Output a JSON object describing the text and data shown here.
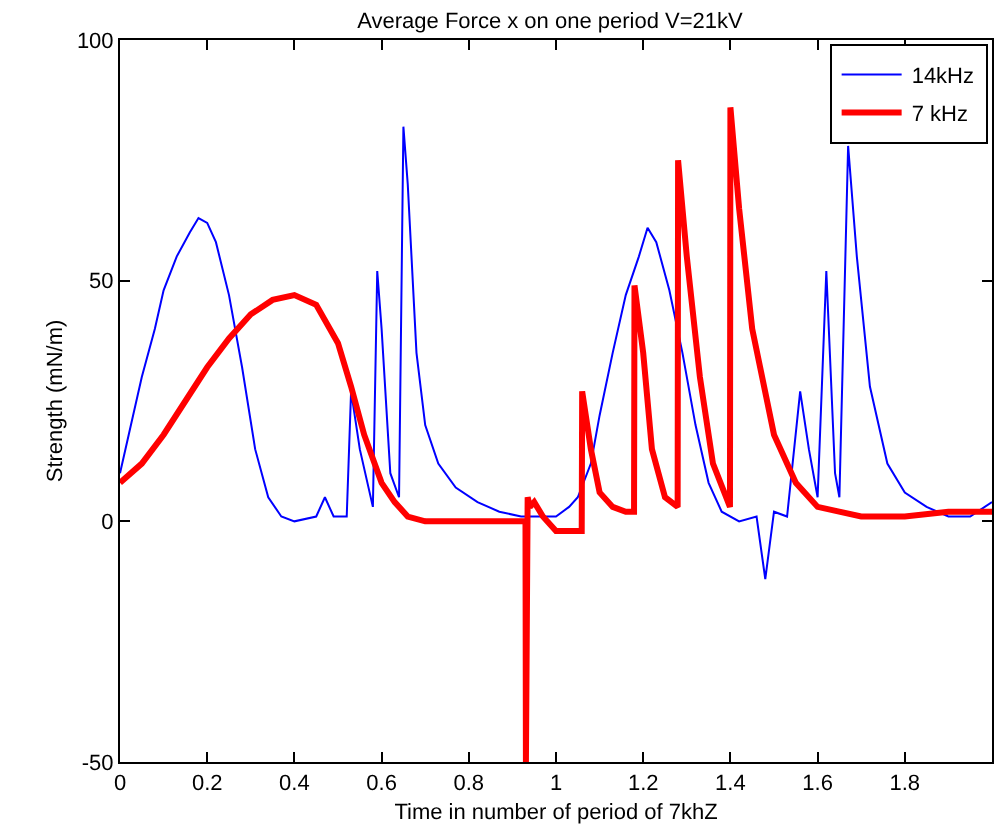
{
  "chart_data": {
    "type": "line",
    "title": "Average Force x on one period V=21kV",
    "xlabel": "Time in number of period of 7khZ",
    "ylabel": "Strength (mN/m)",
    "xlim": [
      0,
      2
    ],
    "xticks": [
      0,
      0.2,
      0.4,
      0.6,
      0.8,
      1,
      1.2,
      1.4,
      1.6,
      1.8
    ],
    "ylim": [
      -50,
      100
    ],
    "yticks": [
      -50,
      0,
      50,
      100
    ],
    "legend": "top right",
    "line_style": "solid",
    "marker": "none",
    "series": [
      {
        "name": "14kHz",
        "color": "#0000ff",
        "x": [
          0,
          0.02,
          0.05,
          0.08,
          0.1,
          0.13,
          0.16,
          0.18,
          0.2,
          0.22,
          0.25,
          0.28,
          0.31,
          0.34,
          0.37,
          0.4,
          0.45,
          0.47,
          0.49,
          0.52,
          0.53,
          0.55,
          0.58,
          0.59,
          0.6,
          0.62,
          0.64,
          0.65,
          0.66,
          0.68,
          0.7,
          0.73,
          0.77,
          0.82,
          0.87,
          0.92,
          0.97,
          1.0,
          1.03,
          1.05,
          1.08,
          1.1,
          1.13,
          1.16,
          1.19,
          1.21,
          1.23,
          1.26,
          1.29,
          1.32,
          1.35,
          1.38,
          1.42,
          1.46,
          1.48,
          1.5,
          1.53,
          1.56,
          1.58,
          1.6,
          1.62,
          1.64,
          1.65,
          1.67,
          1.69,
          1.72,
          1.76,
          1.8,
          1.85,
          1.9,
          1.95,
          2.0
        ],
        "values": [
          10,
          18,
          30,
          40,
          48,
          55,
          60,
          63,
          62,
          58,
          47,
          32,
          15,
          5,
          1,
          0,
          1,
          5,
          1,
          1,
          27,
          15,
          3,
          52,
          40,
          10,
          5,
          82,
          70,
          35,
          20,
          12,
          7,
          4,
          2,
          1,
          1,
          1,
          3,
          5,
          12,
          22,
          35,
          47,
          55,
          61,
          58,
          48,
          35,
          20,
          8,
          2,
          0,
          1,
          -12,
          2,
          1,
          27,
          15,
          5,
          52,
          10,
          5,
          78,
          55,
          28,
          12,
          6,
          3,
          1,
          1,
          4
        ]
      },
      {
        "name": "7 kHz",
        "color": "#ff0000",
        "x": [
          0,
          0.05,
          0.1,
          0.15,
          0.2,
          0.25,
          0.3,
          0.35,
          0.4,
          0.45,
          0.5,
          0.53,
          0.56,
          0.6,
          0.63,
          0.66,
          0.7,
          0.8,
          0.9,
          0.93,
          0.931,
          0.935,
          0.94,
          0.95,
          0.97,
          1.0,
          1.03,
          1.059,
          1.06,
          1.08,
          1.1,
          1.13,
          1.16,
          1.179,
          1.18,
          1.2,
          1.22,
          1.25,
          1.279,
          1.28,
          1.3,
          1.33,
          1.36,
          1.399,
          1.4,
          1.42,
          1.45,
          1.5,
          1.55,
          1.6,
          1.7,
          1.8,
          1.9,
          2.0
        ],
        "values": [
          8,
          12,
          18,
          25,
          32,
          38,
          43,
          46,
          47,
          45,
          37,
          28,
          18,
          8,
          4,
          1,
          0,
          0,
          0,
          0,
          -50,
          5,
          3,
          4,
          1,
          -2,
          -2,
          -2,
          27,
          15,
          6,
          3,
          2,
          2,
          49,
          35,
          15,
          5,
          3,
          75,
          55,
          30,
          12,
          3,
          86,
          65,
          40,
          18,
          8,
          3,
          1,
          1,
          2,
          2
        ]
      }
    ]
  }
}
